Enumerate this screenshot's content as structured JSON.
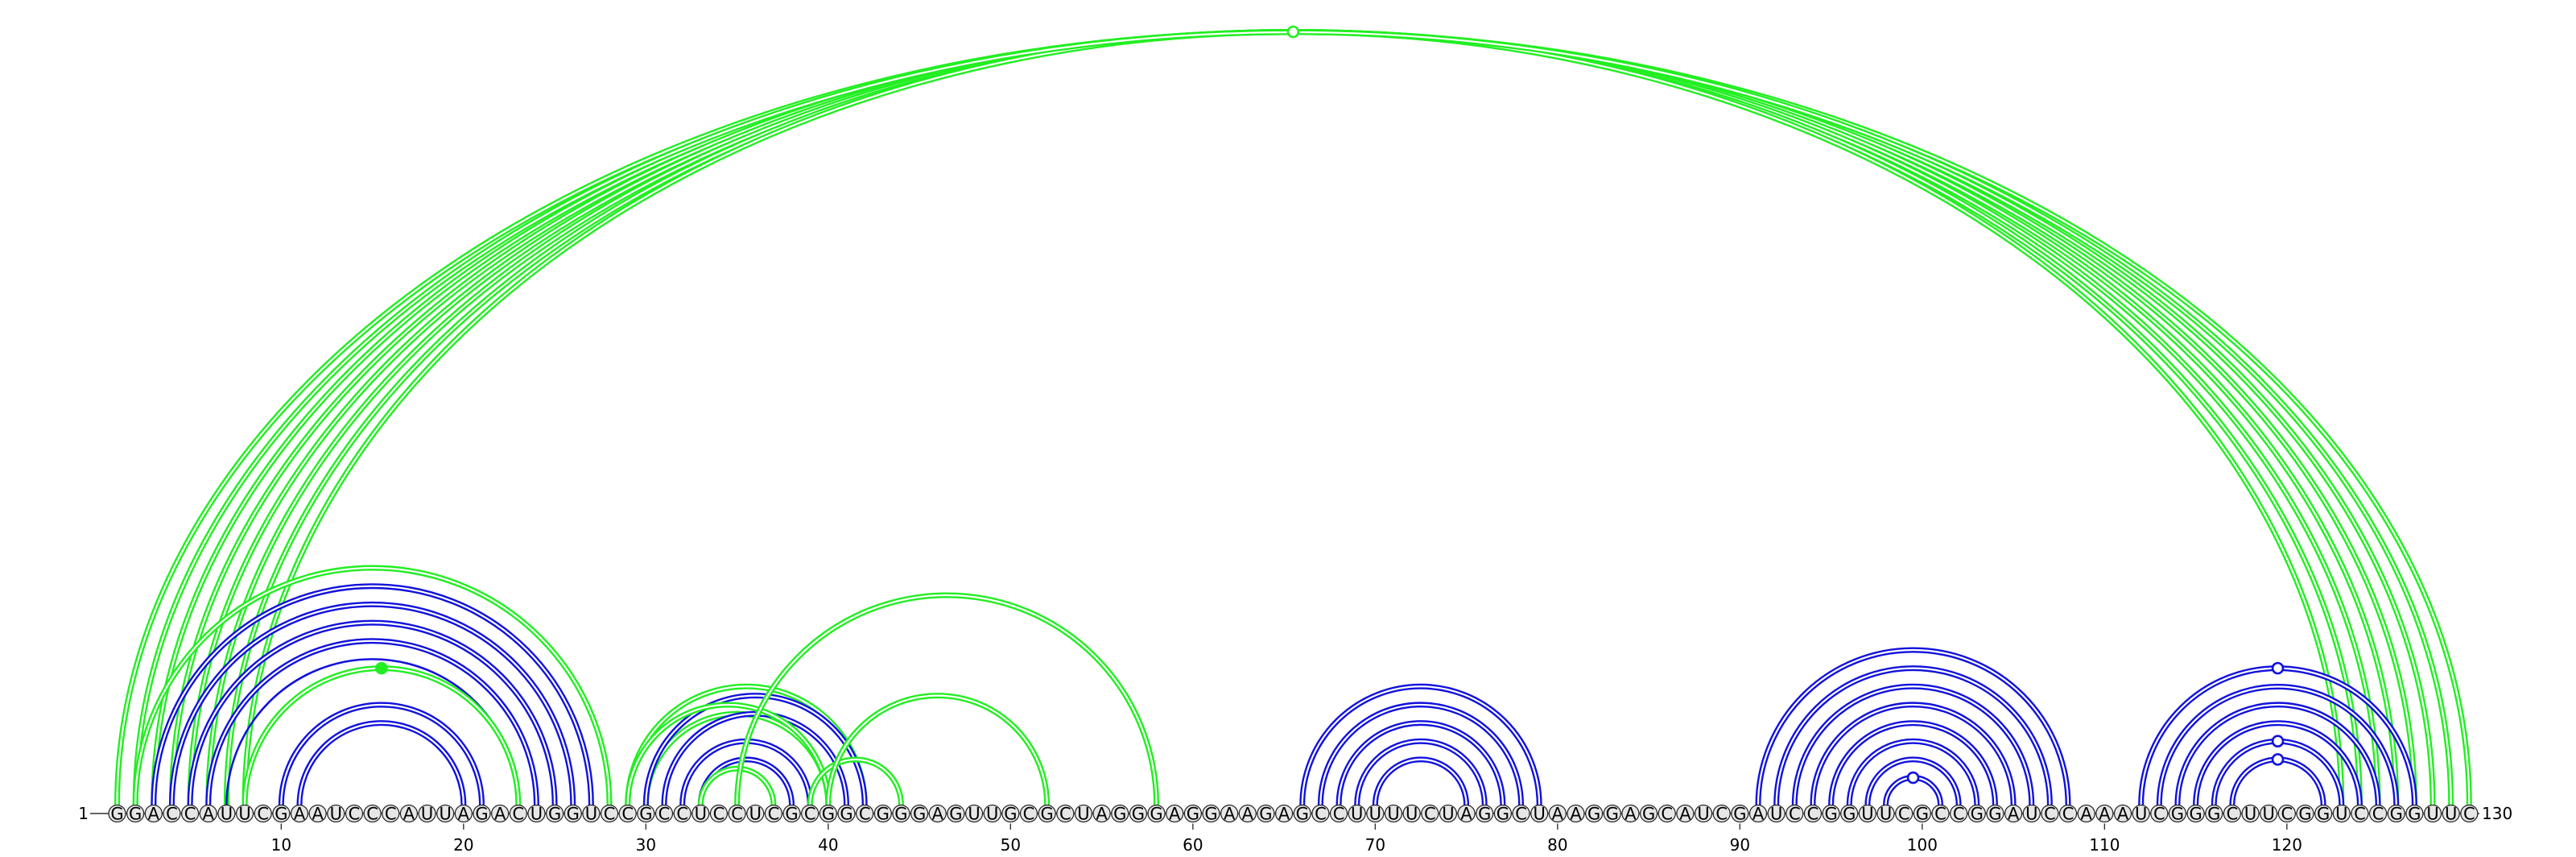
{
  "sequence": "GGACCAUUCGAAUCCCAUUAGACUGGUCCGCCUCCUCGCGGCGGGAGUUGCGCUAGGGAGGAAGAGCCUUUUCUAGGCUAAGGAGCAUCGAUCCGGUUCGCCGGAUCCAAAUCGGGCUUCGGUCCGGUUC",
  "length": 130,
  "start_label": "1",
  "end_label": "130",
  "tick_labels": [
    "10",
    "20",
    "30",
    "40",
    "50",
    "60",
    "70",
    "80",
    "90",
    "100",
    "110",
    "120"
  ],
  "colors": {
    "green": "#22ee22",
    "blue": "#1111dd",
    "nucleotide_fill": "#e6e6e6",
    "nucleotide_stroke": "#222222"
  },
  "arc_groups": [
    {
      "color": "green",
      "double": true,
      "pairs": [
        [
          1,
          130
        ],
        [
          3,
          128
        ],
        [
          4,
          127
        ],
        [
          5,
          126
        ],
        [
          6,
          125
        ],
        [
          7,
          124
        ],
        [
          8,
          123
        ]
      ]
    },
    {
      "color": "green",
      "double": true,
      "pairs": [
        [
          2,
          129
        ],
        [
          2,
          28
        ]
      ]
    },
    {
      "color": "blue",
      "double": true,
      "pairs": [
        [
          3,
          27
        ],
        [
          4,
          26
        ],
        [
          5,
          25
        ],
        [
          6,
          24
        ]
      ]
    },
    {
      "color": "blue",
      "double": false,
      "pairs": [
        [
          7,
          23
        ]
      ]
    },
    {
      "color": "green",
      "double": true,
      "pairs": [
        [
          8,
          23
        ]
      ]
    },
    {
      "color": "blue",
      "double": true,
      "pairs": [
        [
          10,
          21
        ],
        [
          11,
          20
        ]
      ]
    },
    {
      "color": "green",
      "double": true,
      "pairs": [
        [
          29,
          42
        ],
        [
          30,
          40
        ]
      ]
    },
    {
      "color": "blue",
      "double": true,
      "pairs": [
        [
          30,
          42
        ],
        [
          31,
          41
        ],
        [
          32,
          39
        ],
        [
          33,
          38
        ]
      ]
    },
    {
      "color": "green",
      "double": true,
      "pairs": [
        [
          29,
          40
        ],
        [
          33,
          37
        ],
        [
          39,
          44
        ],
        [
          40,
          52
        ],
        [
          35,
          58
        ]
      ]
    },
    {
      "color": "blue",
      "double": true,
      "pairs": [
        [
          66,
          79
        ],
        [
          67,
          78
        ],
        [
          68,
          77
        ],
        [
          69,
          76
        ],
        [
          70,
          75
        ]
      ]
    },
    {
      "color": "blue",
      "double": true,
      "pairs": [
        [
          91,
          108
        ],
        [
          92,
          107
        ],
        [
          93,
          106
        ],
        [
          94,
          105
        ],
        [
          95,
          104
        ],
        [
          96,
          103
        ],
        [
          97,
          102
        ],
        [
          98,
          101
        ]
      ]
    },
    {
      "color": "blue",
      "double": true,
      "pairs": [
        [
          112,
          127
        ],
        [
          113,
          126
        ],
        [
          114,
          125
        ],
        [
          115,
          124
        ],
        [
          116,
          123
        ],
        [
          117,
          122
        ]
      ]
    }
  ],
  "markers": [
    {
      "position": 65.5,
      "arc": [
        1,
        130
      ],
      "color": "green",
      "filled": false
    },
    {
      "position": 15.5,
      "arc": [
        8,
        23
      ],
      "color": "green",
      "filled": true
    },
    {
      "position": 99.5,
      "arc": [
        98,
        101
      ],
      "color": "blue",
      "filled": false
    },
    {
      "position": 119.5,
      "arc": [
        112,
        127
      ],
      "color": "blue",
      "filled": false
    },
    {
      "position": 119.5,
      "arc": [
        116,
        123
      ],
      "color": "blue",
      "filled": false
    },
    {
      "position": 119.5,
      "arc": [
        117,
        122
      ],
      "color": "blue",
      "filled": false
    }
  ]
}
